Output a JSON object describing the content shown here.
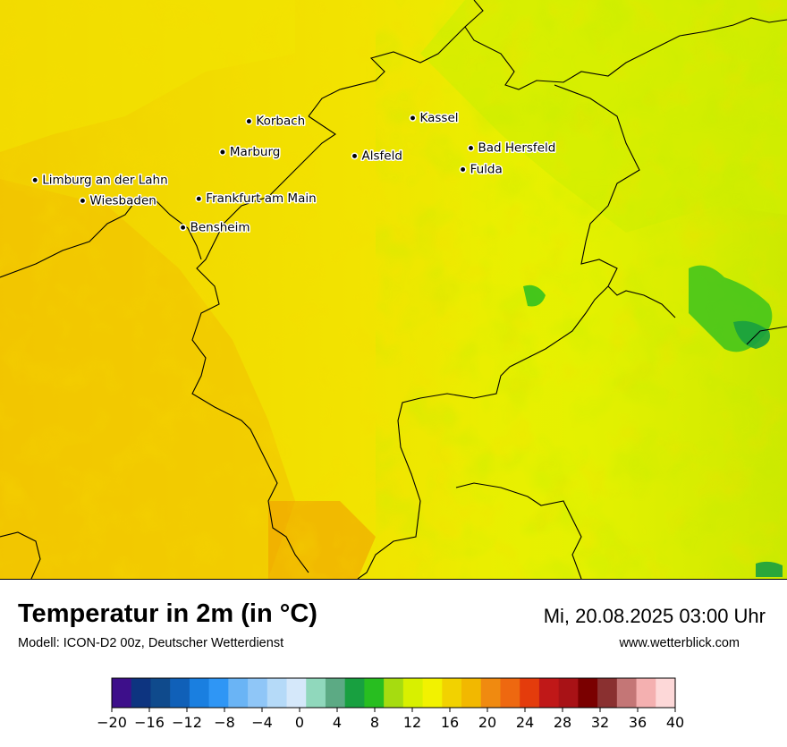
{
  "map": {
    "base_color": "#f2f200",
    "cities": [
      {
        "name": "Kassel",
        "lon": 9.49,
        "lat": 51.32
      },
      {
        "name": "Korbach",
        "lon": 8.87,
        "lat": 51.27
      },
      {
        "name": "Bad Hersfeld",
        "lon": 9.71,
        "lat": 50.87
      },
      {
        "name": "Marburg",
        "lon": 8.77,
        "lat": 50.81
      },
      {
        "name": "Alsfeld",
        "lon": 9.27,
        "lat": 50.75
      },
      {
        "name": "Fulda",
        "lon": 9.68,
        "lat": 50.55
      },
      {
        "name": "Limburg an der Lahn",
        "lon": 8.06,
        "lat": 50.39
      },
      {
        "name": "Frankfurt am Main",
        "lon": 8.68,
        "lat": 50.11
      },
      {
        "name": "Wiesbaden",
        "lon": 8.24,
        "lat": 50.08
      },
      {
        "name": "Bensheim",
        "lon": 8.62,
        "lat": 49.68
      }
    ]
  },
  "header": {
    "title": "Temperatur in 2m (in °C)",
    "subtitle": "Modell: ICON-D2 00z, Deutscher Wetterdienst",
    "datetime": "Mi, 20.08.2025 03:00 Uhr",
    "website": "www.wetterblick.com"
  },
  "legend": {
    "ticks": [
      "−20",
      "−16",
      "−12",
      "−8",
      "−4",
      "0",
      "4",
      "8",
      "12",
      "16",
      "20",
      "24",
      "28",
      "32",
      "36",
      "40"
    ],
    "colors": [
      "#3d0f8a",
      "#0d3480",
      "#0f4a8c",
      "#1060b8",
      "#1a7fe0",
      "#2f96f5",
      "#6ab4f5",
      "#8fc6f7",
      "#b5daf8",
      "#d5e8fa",
      "#90d8bc",
      "#5caa84",
      "#18a040",
      "#28be20",
      "#a6dc10",
      "#d8f000",
      "#f2f200",
      "#f2d200",
      "#f2b800",
      "#f08a10",
      "#ee6810",
      "#e43c0c",
      "#c01818",
      "#a81216",
      "#7a0000",
      "#8a3030",
      "#c47676",
      "#f4b0b0",
      "#fdd8d8"
    ]
  }
}
